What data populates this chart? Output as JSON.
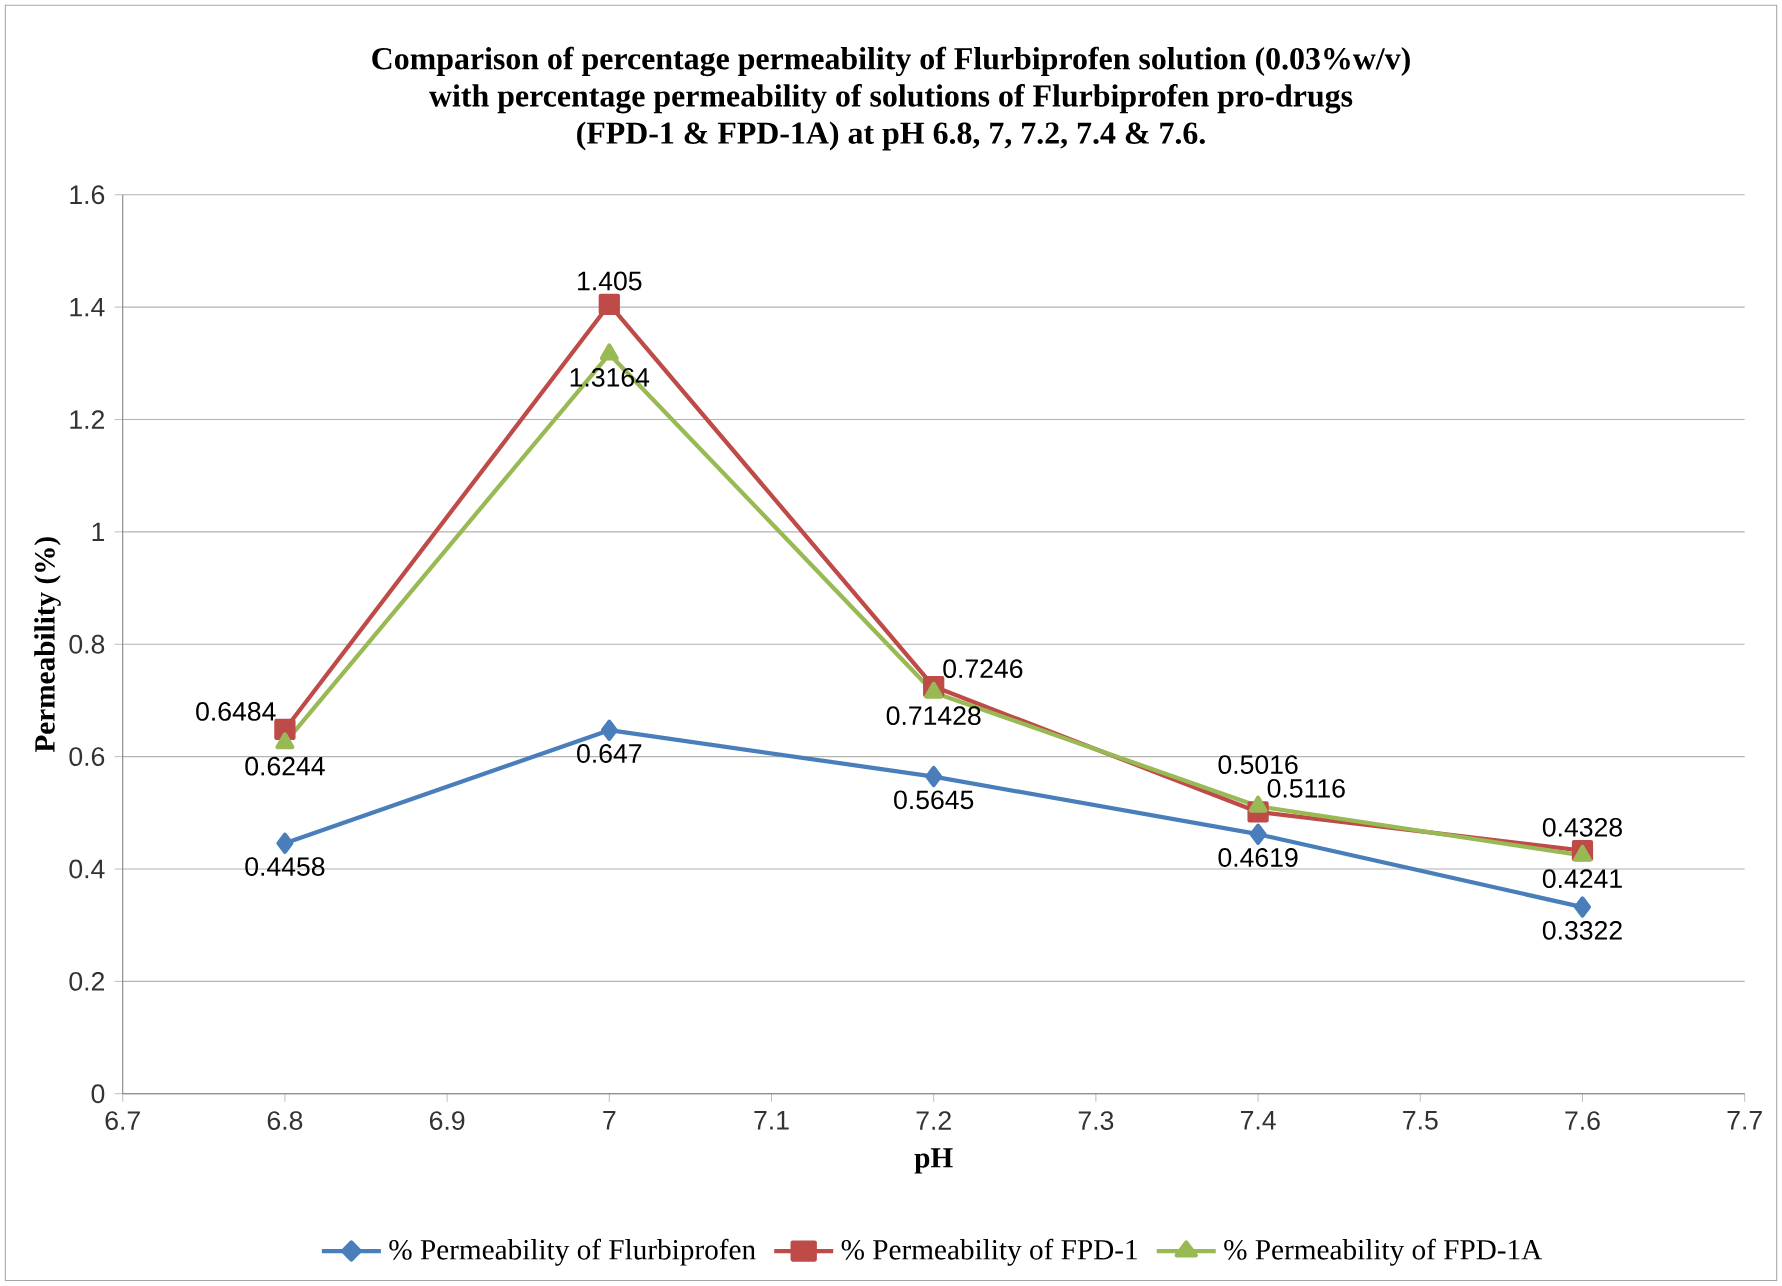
{
  "chart_data": {
    "type": "line",
    "title": "Comparison of percentage permeability  of  Flurbiprofen solution (0.03%w/v)\nwith percentage permeability of solutions of  Flurbiprofen pro-drugs\n(FPD-1 & FPD-1A) at pH 6.8, 7, 7.2, 7.4 & 7.6.",
    "xlabel": "pH",
    "ylabel": "Permeability (%)",
    "x": [
      6.8,
      7,
      7.2,
      7.4,
      7.6
    ],
    "series": [
      {
        "name": "% Permeability of Flurbiprofen",
        "color": "#4a7ebb",
        "marker": "diamond",
        "values": [
          0.4458,
          0.647,
          0.5645,
          0.4619,
          0.3322
        ]
      },
      {
        "name": "% Permeability of FPD-1",
        "color": "#be4b48",
        "marker": "square",
        "values": [
          0.6484,
          1.405,
          0.7246,
          0.5016,
          0.4328
        ]
      },
      {
        "name": "% Permeability of FPD-1A",
        "color": "#98b954",
        "marker": "triangle",
        "values": [
          0.6244,
          1.3164,
          0.71428,
          0.5116,
          0.4241
        ]
      }
    ],
    "xlim": [
      6.7,
      7.7
    ],
    "xticks": [
      6.7,
      6.8,
      6.9,
      7,
      7.1,
      7.2,
      7.3,
      7.4,
      7.5,
      7.6,
      7.7
    ],
    "ylim": [
      0,
      1.6
    ],
    "yticks": [
      0,
      0.2,
      0.4,
      0.6,
      0.8,
      1,
      1.2,
      1.4,
      1.6
    ],
    "grid": "y",
    "legend": "bottom",
    "data_labels": true,
    "line_style": "solid"
  }
}
